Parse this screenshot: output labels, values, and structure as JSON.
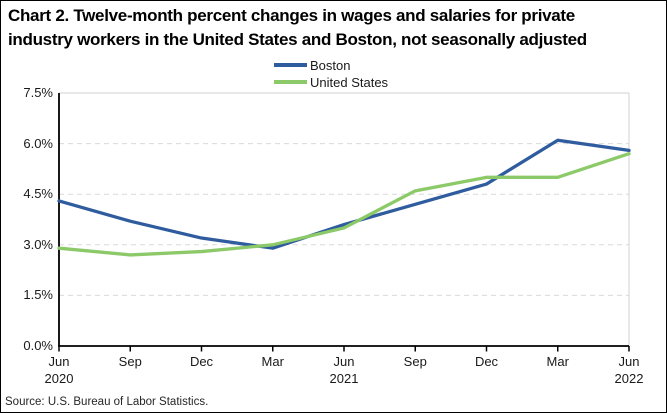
{
  "title": "Chart 2. Twelve-month percent changes in wages and salaries for private industry workers in the United States and Boston, not seasonally adjusted",
  "source": "Source: U.S. Bureau of Labor Statistics.",
  "colors": {
    "boston_line": "#2E5C9E",
    "us_line": "#8CC968",
    "gridline": "#D9D9D9",
    "axis": "#000000",
    "text": "#1a1a1a"
  },
  "chart_data": {
    "type": "line",
    "title": "Chart 2. Twelve-month percent changes in wages and salaries for private industry workers in the United States and Boston, not seasonally adjusted",
    "categories": [
      "Jun 2020",
      "Sep 2020",
      "Dec 2020",
      "Mar 2021",
      "Jun 2021",
      "Sep 2021",
      "Dec 2021",
      "Mar 2022",
      "Jun 2022"
    ],
    "x_ticks": [
      {
        "month": "Jun",
        "year": "2020"
      },
      {
        "month": "Sep"
      },
      {
        "month": "Dec"
      },
      {
        "month": "Mar"
      },
      {
        "month": "Jun",
        "year": "2021"
      },
      {
        "month": "Sep"
      },
      {
        "month": "Dec"
      },
      {
        "month": "Mar"
      },
      {
        "month": "Jun",
        "year": "2022"
      }
    ],
    "series": [
      {
        "name": "Boston",
        "color": "#2E5C9E",
        "values": [
          4.3,
          3.7,
          3.2,
          2.9,
          3.6,
          4.2,
          4.8,
          6.1,
          5.8
        ]
      },
      {
        "name": "United States",
        "color": "#8CC968",
        "values": [
          2.9,
          2.7,
          2.8,
          3.0,
          3.5,
          4.6,
          5.0,
          5.0,
          5.7
        ]
      }
    ],
    "xlabel": "",
    "ylabel": "",
    "ylim": [
      0,
      7.5
    ],
    "yticks": [
      0.0,
      1.5,
      3.0,
      4.5,
      6.0,
      7.5
    ],
    "ytick_suffix": "%",
    "grid": "horizontal-dashed",
    "legend_position": "top-center"
  }
}
